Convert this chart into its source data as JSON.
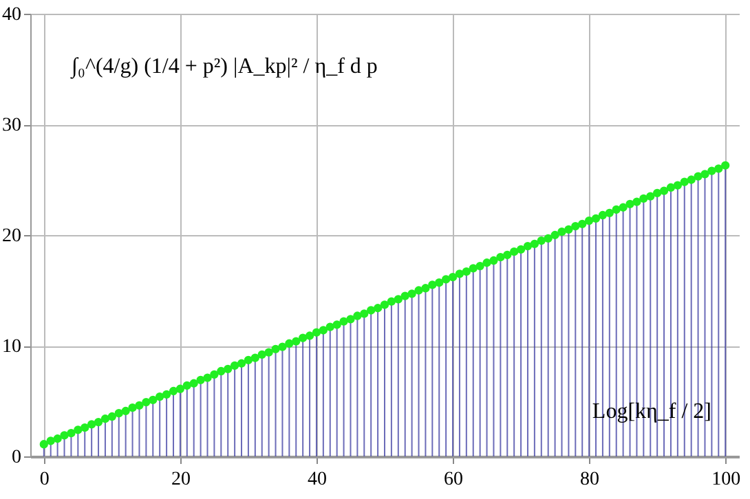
{
  "chart_data": {
    "type": "lollipop",
    "xlabel": "Log[kη_f / 2]",
    "ylabel": "∫₀^(4/g) (1/4 + p²) |A_kp|² / η_f d p",
    "x": [
      0,
      1,
      2,
      3,
      4,
      5,
      6,
      7,
      8,
      9,
      10,
      11,
      12,
      13,
      14,
      15,
      16,
      17,
      18,
      19,
      20,
      21,
      22,
      23,
      24,
      25,
      26,
      27,
      28,
      29,
      30,
      31,
      32,
      33,
      34,
      35,
      36,
      37,
      38,
      39,
      40,
      41,
      42,
      43,
      44,
      45,
      46,
      47,
      48,
      49,
      50,
      51,
      52,
      53,
      54,
      55,
      56,
      57,
      58,
      59,
      60,
      61,
      62,
      63,
      64,
      65,
      66,
      67,
      68,
      69,
      70,
      71,
      72,
      73,
      74,
      75,
      76,
      77,
      78,
      79,
      80,
      81,
      82,
      83,
      84,
      85,
      86,
      87,
      88,
      89,
      90,
      91,
      92,
      93,
      94,
      95,
      96,
      97,
      98,
      99,
      100
    ],
    "series": [
      {
        "color": "#22ee22",
        "values": [
          1.1,
          1.4,
          1.6,
          1.9,
          2.1,
          2.4,
          2.6,
          2.9,
          3.1,
          3.4,
          3.6,
          3.9,
          4.1,
          4.4,
          4.6,
          4.9,
          5.1,
          5.4,
          5.6,
          5.9,
          6.1,
          6.4,
          6.6,
          6.9,
          7.1,
          7.4,
          7.7,
          7.9,
          8.2,
          8.4,
          8.7,
          8.9,
          9.2,
          9.4,
          9.7,
          9.9,
          10.2,
          10.4,
          10.7,
          10.9,
          11.2,
          11.4,
          11.7,
          11.9,
          12.2,
          12.4,
          12.7,
          12.9,
          13.2,
          13.4,
          13.7,
          14.0,
          14.2,
          14.5,
          14.7,
          15.0,
          15.2,
          15.5,
          15.7,
          16.0,
          16.2,
          16.5,
          16.7,
          17.0,
          17.2,
          17.5,
          17.7,
          18.0,
          18.2,
          18.5,
          18.7,
          19.0,
          19.2,
          19.5,
          19.7,
          20.0,
          20.3,
          20.5,
          20.8,
          21.0,
          21.3,
          21.5,
          21.8,
          22.0,
          22.3,
          22.5,
          22.8,
          23.0,
          23.3,
          23.5,
          23.8,
          24.0,
          24.3,
          24.5,
          24.8,
          25.0,
          25.3,
          25.5,
          25.8,
          26.0,
          26.3
        ]
      }
    ],
    "xlim": [
      -2,
      102
    ],
    "xticks": [
      0,
      20,
      40,
      60,
      80,
      100
    ],
    "ylim": [
      0,
      40
    ],
    "yticks": [
      0,
      10,
      20,
      30,
      40
    ],
    "grid": true,
    "marker": "circle"
  }
}
